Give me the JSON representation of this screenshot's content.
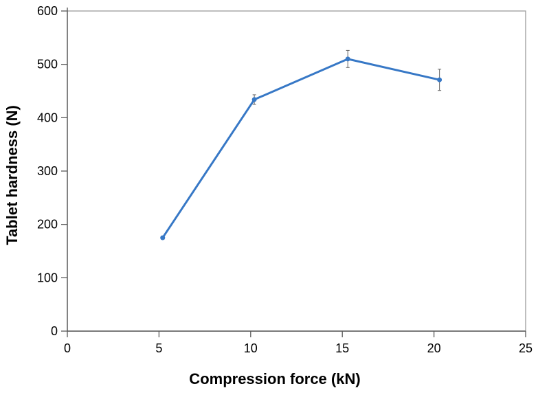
{
  "chart_data": {
    "type": "line",
    "title": "",
    "xlabel": "Compression force (kN)",
    "ylabel": "Tablet hardness (N)",
    "xlim": [
      0,
      25
    ],
    "ylim": [
      0,
      600
    ],
    "xticks": [
      0,
      5,
      10,
      15,
      20,
      25
    ],
    "yticks": [
      0,
      100,
      200,
      300,
      400,
      500,
      600
    ],
    "grid": false,
    "legend": false,
    "series": [
      {
        "name": "tablet-hardness",
        "marker": "circle",
        "color": "#3778C6",
        "points": [
          {
            "x": 5.2,
            "y": 175,
            "yerr": 3
          },
          {
            "x": 10.2,
            "y": 434,
            "yerr": 9
          },
          {
            "x": 15.3,
            "y": 510,
            "yerr": 16
          },
          {
            "x": 20.3,
            "y": 471,
            "yerr": 20
          }
        ]
      }
    ],
    "colors": {
      "series": "#3778C6",
      "error_bar": "#707070",
      "axis": "#595959",
      "plot_border": "#9B9B9B",
      "text": "#000000",
      "background": "#FFFFFF"
    }
  }
}
